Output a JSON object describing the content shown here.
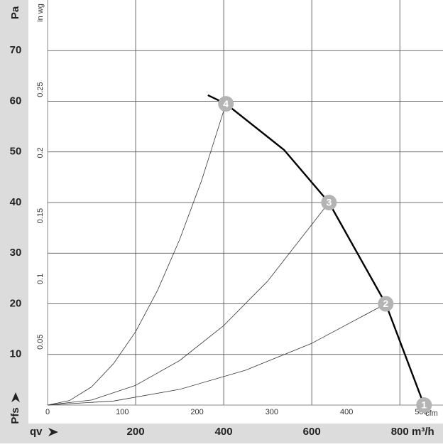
{
  "chart_data": {
    "type": "fan-curve",
    "y_unit": "Pa",
    "y_name": "Pfs",
    "x_name": "qv",
    "x_unit": "m³/h",
    "y2_unit": "in wg",
    "x2_unit": "cfm",
    "xlim": [
      0,
      898
    ],
    "ylim": [
      0,
      80
    ],
    "xticks": [
      200,
      400,
      600,
      800
    ],
    "yticks": [
      10,
      20,
      30,
      40,
      50,
      60,
      70
    ],
    "x2lim": [
      0,
      529
    ],
    "x2ticks": [
      0,
      100,
      200,
      300,
      400,
      500
    ],
    "y2lim": [
      0,
      0.321
    ],
    "y2ticks": [
      0.05,
      0.1,
      0.15,
      0.2,
      0.25
    ],
    "grid": true,
    "fan_curve": {
      "color": "#000000",
      "x": [
        364,
        405,
        537,
        639,
        768,
        855
      ],
      "values": [
        61.2,
        59.5,
        50.4,
        40,
        20,
        0
      ]
    },
    "system_curves": [
      {
        "color": "#333333",
        "x": [
          0,
          50,
          100,
          150,
          200,
          250,
          300,
          350,
          405
        ],
        "values": [
          0,
          0.9,
          3.6,
          8.2,
          14.5,
          22.7,
          32.7,
          44.4,
          59.5
        ]
      },
      {
        "color": "#333333",
        "x": [
          0,
          100,
          200,
          300,
          400,
          500,
          639
        ],
        "values": [
          0,
          1.0,
          3.9,
          8.8,
          15.7,
          24.5,
          40
        ]
      },
      {
        "color": "#333333",
        "x": [
          0,
          150,
          300,
          450,
          600,
          768
        ],
        "values": [
          0,
          0.8,
          3.1,
          6.9,
          12.2,
          20
        ]
      }
    ],
    "operating_points": {
      "color": "#b4b4b4",
      "labels": [
        "1",
        "2",
        "3",
        "4"
      ],
      "x": [
        855,
        768,
        639,
        405
      ],
      "values": [
        0,
        20,
        40,
        59.5
      ]
    }
  }
}
